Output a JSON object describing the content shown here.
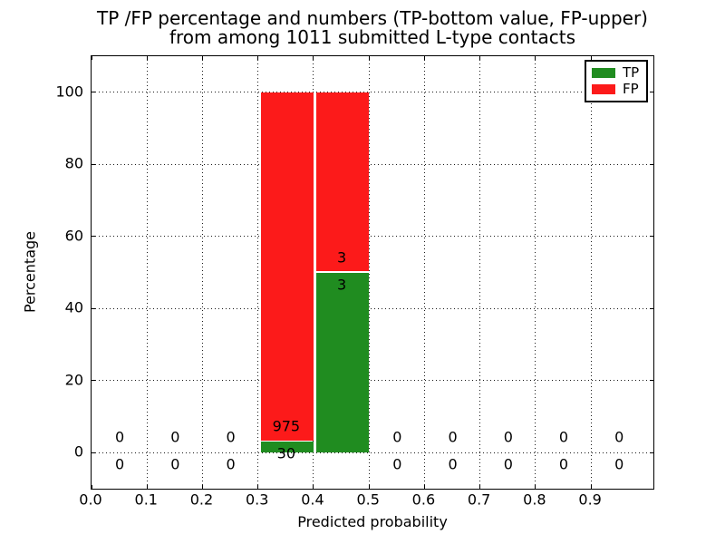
{
  "figure": {
    "title_line1": "TP /FP percentage and numbers (TP-bottom value, FP-upper)",
    "title_line2": "from among 1011 submitted L-type contacts",
    "xlabel": "Predicted probability",
    "ylabel": "Percentage"
  },
  "colors": {
    "tp": "#208c20",
    "fp": "#fc1a1a",
    "spine": "#000000",
    "grid": "#1a1a1a",
    "text": "#000000",
    "background": "#ffffff"
  },
  "legend": {
    "items": [
      {
        "label": "TP",
        "color": "#208c20"
      },
      {
        "label": "FP",
        "color": "#fc1a1a"
      }
    ]
  },
  "chart_data": {
    "type": "bar",
    "stacked": true,
    "title": "TP /FP percentage and numbers (TP-bottom value, FP-upper)\nfrom among 1011 submitted L-type contacts",
    "xlabel": "Predicted probability",
    "ylabel": "Percentage",
    "total_submitted_contacts": 1011,
    "contact_type": "L-type",
    "xlim": [
      0,
      1.0125
    ],
    "ylim": [
      -10,
      110
    ],
    "grid": "dotted",
    "legend_position": "upper right",
    "xticks": [
      {
        "v": 0.0,
        "label": "0.0"
      },
      {
        "v": 0.1,
        "label": "0.1"
      },
      {
        "v": 0.2,
        "label": "0.2"
      },
      {
        "v": 0.3,
        "label": "0.3"
      },
      {
        "v": 0.4,
        "label": "0.4"
      },
      {
        "v": 0.5,
        "label": "0.5"
      },
      {
        "v": 0.6,
        "label": "0.6"
      },
      {
        "v": 0.7,
        "label": "0.7"
      },
      {
        "v": 0.8,
        "label": "0.8"
      },
      {
        "v": 0.9,
        "label": "0.9"
      }
    ],
    "yticks": [
      {
        "v": 0,
        "label": "0"
      },
      {
        "v": 20,
        "label": "20"
      },
      {
        "v": 40,
        "label": "40"
      },
      {
        "v": 60,
        "label": "60"
      },
      {
        "v": 80,
        "label": "80"
      },
      {
        "v": 100,
        "label": "100"
      }
    ],
    "series": [
      {
        "name": "TP",
        "color": "#208c20",
        "values": [
          0,
          0,
          0,
          30,
          3,
          0,
          0,
          0,
          0,
          0
        ]
      },
      {
        "name": "FP",
        "color": "#fc1a1a",
        "values": [
          0,
          0,
          0,
          975,
          3,
          0,
          0,
          0,
          0,
          0
        ]
      }
    ],
    "bar_geometry": {
      "left_offset": -0.045,
      "width": 0.095,
      "label_x_offset": 0.0025
    },
    "bins": [
      {
        "range": "0.0-0.1",
        "center": 0.05,
        "tp": 0,
        "fp": 0,
        "tp_pct": 0,
        "fp_pct": 0,
        "tp_label": "0",
        "fp_label": "0"
      },
      {
        "range": "0.1-0.2",
        "center": 0.15,
        "tp": 0,
        "fp": 0,
        "tp_pct": 0,
        "fp_pct": 0,
        "tp_label": "0",
        "fp_label": "0"
      },
      {
        "range": "0.2-0.3",
        "center": 0.25,
        "tp": 0,
        "fp": 0,
        "tp_pct": 0,
        "fp_pct": 0,
        "tp_label": "0",
        "fp_label": "0"
      },
      {
        "range": "0.3-0.4",
        "center": 0.35,
        "tp": 30,
        "fp": 975,
        "tp_pct": 2.985,
        "fp_pct": 97.015,
        "tp_label": "30",
        "fp_label": "975"
      },
      {
        "range": "0.4-0.5",
        "center": 0.45,
        "tp": 3,
        "fp": 3,
        "tp_pct": 50,
        "fp_pct": 50,
        "tp_label": "3",
        "fp_label": "3"
      },
      {
        "range": "0.5-0.6",
        "center": 0.55,
        "tp": 0,
        "fp": 0,
        "tp_pct": 0,
        "fp_pct": 0,
        "tp_label": "0",
        "fp_label": "0"
      },
      {
        "range": "0.6-0.7",
        "center": 0.65,
        "tp": 0,
        "fp": 0,
        "tp_pct": 0,
        "fp_pct": 0,
        "tp_label": "0",
        "fp_label": "0"
      },
      {
        "range": "0.7-0.8",
        "center": 0.75,
        "tp": 0,
        "fp": 0,
        "tp_pct": 0,
        "fp_pct": 0,
        "tp_label": "0",
        "fp_label": "0"
      },
      {
        "range": "0.8-0.9",
        "center": 0.85,
        "tp": 0,
        "fp": 0,
        "tp_pct": 0,
        "fp_pct": 0,
        "tp_label": "0",
        "fp_label": "0"
      },
      {
        "range": "0.9-1.0",
        "center": 0.95,
        "tp": 0,
        "fp": 0,
        "tp_pct": 0,
        "fp_pct": 0,
        "tp_label": "0",
        "fp_label": "0"
      }
    ]
  }
}
